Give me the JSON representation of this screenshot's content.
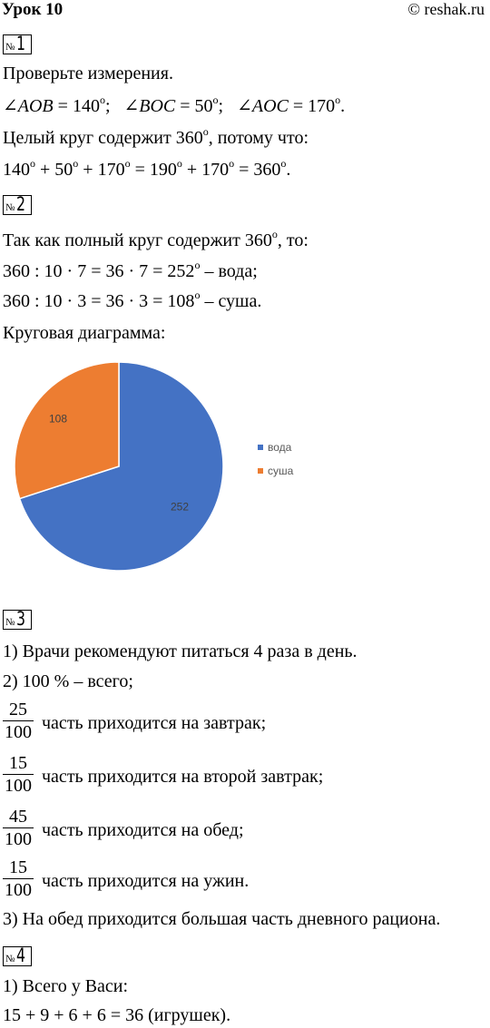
{
  "header": {
    "lesson": "Урок 10",
    "site": "© reshak.ru"
  },
  "task1": {
    "no": "№",
    "n": "1",
    "line1": "Проверьте измерения.",
    "angle1": "AOB",
    "angle1_val": "140",
    "angle2": "BOC",
    "angle2_val": "50",
    "angle3": "AOC",
    "angle3_val": "170",
    "line3a": "Целый круг содержит 360",
    "line3b": ", потому что:",
    "eq": [
      "140",
      "50",
      "170",
      "190",
      "170",
      "360"
    ]
  },
  "task2": {
    "no": "№",
    "n": "2",
    "line1a": "Так как полный круг содержит 360",
    "line1b": ", то:",
    "line2a": "360  :  10 · 7 = 36 · 7 = 252",
    "line2b": " – вода;",
    "line3a": "360  :  10 · 3 = 36 · 3 = 108",
    "line3b": " – суша.",
    "line4": "Круговая диаграмма:"
  },
  "chart_data": {
    "type": "pie",
    "categories": [
      "вода",
      "суша"
    ],
    "values": [
      252,
      108
    ],
    "colors": [
      "#4472C4",
      "#ED7D31"
    ],
    "data_labels": [
      "252",
      "108"
    ],
    "legend_position": "right"
  },
  "task3": {
    "no": "№",
    "n": "3",
    "line1": "1) Врачи рекомендуют питаться 4 раза в день.",
    "line2": "2) 100 % – всего;",
    "fractions": [
      {
        "num": "25",
        "den": "100",
        "text": "часть приходится на завтрак;"
      },
      {
        "num": "15",
        "den": "100",
        "text": "часть приходится на второй завтрак;"
      },
      {
        "num": "45",
        "den": "100",
        "text": "часть приходится на обед;"
      },
      {
        "num": "15",
        "den": "100",
        "text": "часть приходится на ужин."
      }
    ],
    "line7": "3) На обед приходится большая часть дневного рациона."
  },
  "task4": {
    "no": "№",
    "n": "4",
    "line1": "1) Всего у Васи:",
    "line2": "15 + 9 + 6 + 6 = 36 (игрушек)."
  },
  "watermark": "reshak.ru",
  "degree": "o",
  "angle_sign": "∠"
}
